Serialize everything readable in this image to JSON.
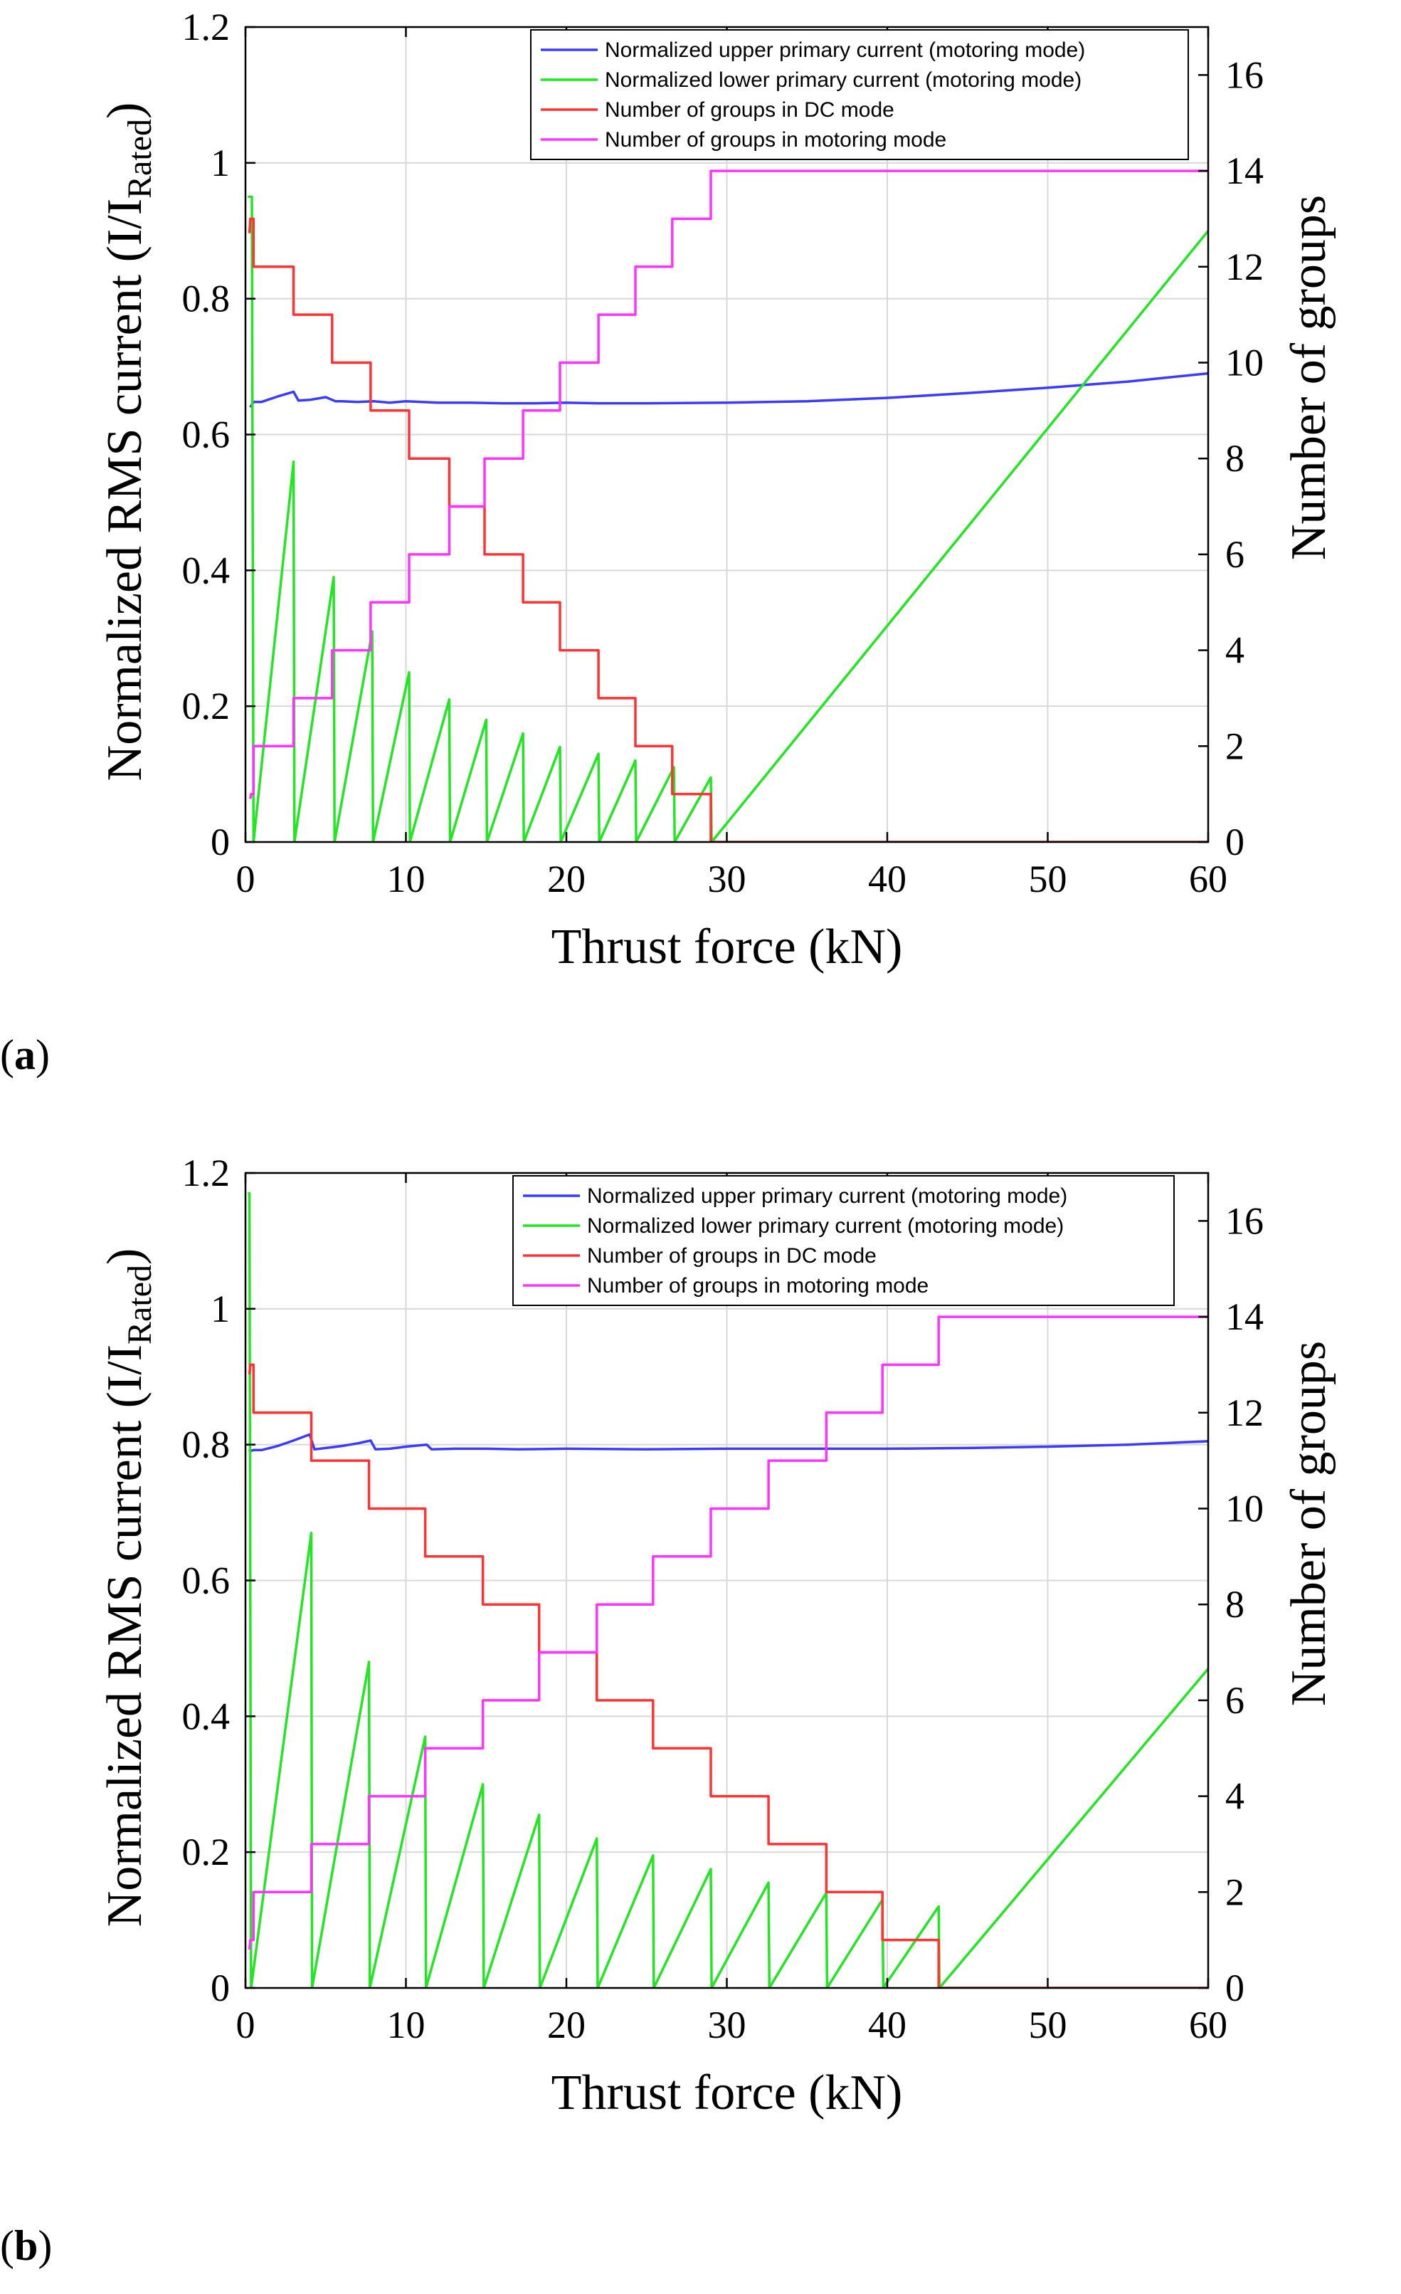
{
  "figure_labels": [
    "a",
    "b"
  ],
  "chart_data": [
    {
      "panel": "a",
      "type": "line",
      "title": "",
      "xlabel": "Thrust force (kN)",
      "ylabel_left": "Normalized RMS current (I/I",
      "ylabel_left_sub": "Rated",
      "ylabel_left_close": ")",
      "ylabel_right": "Number of groups",
      "xlim": [
        0,
        60
      ],
      "ylim_left": [
        0,
        1.2
      ],
      "ylim_right": [
        0,
        17
      ],
      "xticks": [
        "0",
        "10",
        "20",
        "30",
        "40",
        "50",
        "60"
      ],
      "yticks_left": [
        "0",
        "0.2",
        "0.4",
        "0.6",
        "0.8",
        "1",
        "1.2"
      ],
      "yticks_right": [
        "0",
        "2",
        "4",
        "6",
        "8",
        "10",
        "12",
        "14",
        "16"
      ],
      "grid": true,
      "legend_position": "top-right",
      "colors": {
        "upper": "#3b3bff",
        "lower": "#22e622",
        "dc": "#ff3333",
        "motoring": "#ff33ff"
      },
      "series": [
        {
          "name": "Normalized upper primary current (motoring mode)",
          "axis": "left",
          "color": "#3b3bff",
          "x": [
            0.3,
            0.5,
            1,
            2,
            3,
            3.3,
            4,
            5,
            5.6,
            6,
            7,
            8,
            9,
            10,
            12,
            14,
            16,
            18,
            20,
            22,
            25,
            30,
            35,
            40,
            45,
            50,
            55,
            60
          ],
          "y": [
            0.64,
            0.648,
            0.648,
            0.656,
            0.663,
            0.65,
            0.651,
            0.655,
            0.649,
            0.649,
            0.648,
            0.649,
            0.647,
            0.649,
            0.647,
            0.647,
            0.646,
            0.646,
            0.647,
            0.646,
            0.646,
            0.647,
            0.649,
            0.654,
            0.661,
            0.669,
            0.678,
            0.69
          ]
        },
        {
          "name": "Normalized lower primary current (motoring mode)",
          "axis": "left",
          "color": "#22e622",
          "x": [
            0.15,
            0.4,
            0.5,
            3.0,
            3.05,
            5.5,
            5.55,
            7.9,
            7.95,
            10.2,
            10.25,
            12.7,
            12.75,
            15.0,
            15.05,
            17.3,
            17.35,
            19.6,
            19.65,
            22.0,
            22.05,
            24.3,
            24.35,
            26.7,
            26.75,
            29.0,
            29.05,
            60
          ],
          "y": [
            0.95,
            0.95,
            0.0,
            0.56,
            0.0,
            0.39,
            0.0,
            0.31,
            0.0,
            0.25,
            0.0,
            0.21,
            0.0,
            0.18,
            0.0,
            0.16,
            0.0,
            0.14,
            0.0,
            0.13,
            0.0,
            0.12,
            0.0,
            0.11,
            0.0,
            0.095,
            0.0,
            0.9
          ]
        },
        {
          "name": "Number of groups in DC mode",
          "axis": "right",
          "color": "#ff3333",
          "x": [
            0.25,
            0.3,
            0.5,
            0.5,
            3.0,
            3.0,
            5.4,
            5.4,
            7.8,
            7.8,
            10.2,
            10.2,
            12.7,
            12.7,
            14.9,
            14.9,
            17.3,
            17.3,
            19.6,
            19.6,
            22.0,
            22.0,
            24.3,
            24.3,
            26.6,
            26.6,
            29.0,
            29.0,
            60
          ],
          "y": [
            12.7,
            13.0,
            13.0,
            12,
            12,
            11,
            11,
            10,
            10,
            9,
            9,
            8,
            8,
            7,
            7,
            6,
            6,
            5,
            5,
            4,
            4,
            3,
            3,
            2,
            2,
            1,
            1,
            0,
            0
          ]
        },
        {
          "name": "Number of groups in motoring mode",
          "axis": "right",
          "color": "#ff33ff",
          "x": [
            0.3,
            0.35,
            0.5,
            0.5,
            3.0,
            3.0,
            5.4,
            5.4,
            7.8,
            7.8,
            10.2,
            10.2,
            12.7,
            12.7,
            14.9,
            14.9,
            17.3,
            17.3,
            19.6,
            19.6,
            22.0,
            22.0,
            24.3,
            24.3,
            26.6,
            26.6,
            29.0,
            29.0,
            60
          ],
          "y": [
            0.9,
            1.0,
            1.0,
            2,
            2,
            3,
            3,
            4,
            4,
            5,
            5,
            6,
            6,
            7,
            7,
            8,
            8,
            9,
            9,
            10,
            10,
            11,
            11,
            12,
            12,
            13,
            13,
            14,
            14
          ]
        }
      ]
    },
    {
      "panel": "b",
      "type": "line",
      "title": "",
      "xlabel": "Thrust force (kN)",
      "ylabel_left": "Normalized RMS current (I/I",
      "ylabel_left_sub": "Rated",
      "ylabel_left_close": ")",
      "ylabel_right": "Number of groups",
      "xlim": [
        0,
        60
      ],
      "ylim_left": [
        0,
        1.2
      ],
      "ylim_right": [
        0,
        17
      ],
      "xticks": [
        "0",
        "10",
        "20",
        "30",
        "40",
        "50",
        "60"
      ],
      "yticks_left": [
        "0",
        "0.2",
        "0.4",
        "0.6",
        "0.8",
        "1",
        "1.2"
      ],
      "yticks_right": [
        "0",
        "2",
        "4",
        "6",
        "8",
        "10",
        "12",
        "14",
        "16"
      ],
      "grid": true,
      "legend_position": "top-right",
      "colors": {
        "upper": "#3b3bff",
        "lower": "#22e622",
        "dc": "#ff3333",
        "motoring": "#ff33ff"
      },
      "series": [
        {
          "name": "Normalized upper primary current (motoring mode)",
          "axis": "left",
          "color": "#3b3bff",
          "x": [
            0.2,
            0.5,
            1,
            2,
            3,
            4.0,
            4.3,
            5,
            6,
            7,
            7.8,
            8.1,
            9,
            10,
            11.3,
            11.6,
            13,
            15,
            17,
            20,
            25,
            30,
            35,
            40,
            45,
            50,
            55,
            60
          ],
          "y": [
            0.79,
            0.792,
            0.792,
            0.798,
            0.806,
            0.815,
            0.793,
            0.795,
            0.798,
            0.802,
            0.806,
            0.793,
            0.794,
            0.797,
            0.8,
            0.793,
            0.794,
            0.794,
            0.793,
            0.794,
            0.793,
            0.794,
            0.794,
            0.794,
            0.795,
            0.797,
            0.8,
            0.805
          ]
        },
        {
          "name": "Normalized lower primary current (motoring mode)",
          "axis": "left",
          "color": "#22e622",
          "x": [
            0.15,
            0.25,
            0.35,
            4.1,
            4.15,
            7.7,
            7.75,
            11.2,
            11.25,
            14.8,
            14.85,
            18.3,
            18.35,
            21.9,
            21.95,
            25.4,
            25.45,
            29.0,
            29.05,
            32.6,
            32.65,
            36.2,
            36.25,
            39.7,
            39.75,
            43.2,
            43.25,
            60
          ],
          "y": [
            1.17,
            1.17,
            0.0,
            0.67,
            0.0,
            0.48,
            0.0,
            0.37,
            0.0,
            0.3,
            0.0,
            0.255,
            0.0,
            0.22,
            0.0,
            0.195,
            0.0,
            0.175,
            0.0,
            0.155,
            0.0,
            0.14,
            0.0,
            0.13,
            0.0,
            0.12,
            0.0,
            0.47
          ]
        },
        {
          "name": "Number of groups in DC mode",
          "axis": "right",
          "color": "#ff3333",
          "x": [
            0.25,
            0.3,
            0.5,
            0.5,
            4.1,
            4.1,
            7.7,
            7.7,
            11.2,
            11.2,
            14.8,
            14.8,
            18.3,
            18.3,
            21.9,
            21.9,
            25.4,
            25.4,
            29.0,
            29.0,
            32.6,
            32.6,
            36.2,
            36.2,
            39.7,
            39.7,
            43.2,
            43.2,
            60
          ],
          "y": [
            12.8,
            13.0,
            13.0,
            12,
            12,
            11,
            11,
            10,
            10,
            9,
            9,
            8,
            8,
            7,
            7,
            6,
            6,
            5,
            5,
            4,
            4,
            3,
            3,
            2,
            2,
            1,
            1,
            0,
            0
          ]
        },
        {
          "name": "Number of groups in motoring mode",
          "axis": "right",
          "color": "#ff33ff",
          "x": [
            0.25,
            0.3,
            0.5,
            0.5,
            4.1,
            4.1,
            7.7,
            7.7,
            11.2,
            11.2,
            14.8,
            14.8,
            18.3,
            18.3,
            21.9,
            21.9,
            25.4,
            25.4,
            29.0,
            29.0,
            32.6,
            32.6,
            36.2,
            36.2,
            39.7,
            39.7,
            43.2,
            43.2,
            60
          ],
          "y": [
            0.8,
            1.0,
            1.0,
            2,
            2,
            3,
            3,
            4,
            4,
            5,
            5,
            6,
            6,
            7,
            7,
            8,
            8,
            9,
            9,
            10,
            10,
            11,
            11,
            12,
            12,
            13,
            13,
            14,
            14
          ]
        }
      ]
    }
  ]
}
